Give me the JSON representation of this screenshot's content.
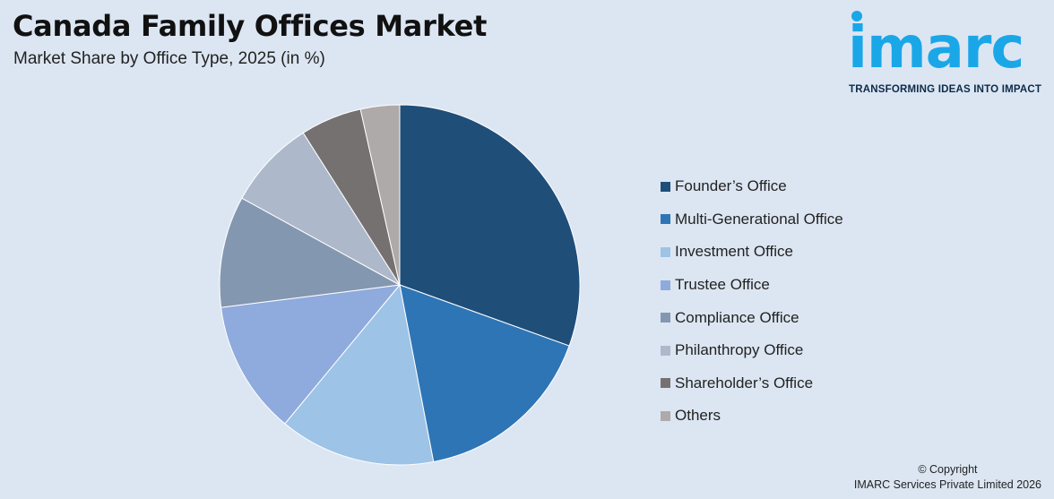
{
  "header": {
    "title": "Canada Family Offices Market",
    "subtitle": "Market Share by Office Type, 2025 (in %)"
  },
  "logo": {
    "word": "imarc",
    "tagline": "TRANSFORMING IDEAS INTO IMPACT",
    "color": "#1aa7e8"
  },
  "footer": {
    "copyright": "© Copyright",
    "company": "IMARC Services Private Limited 2026"
  },
  "chart_data": {
    "type": "pie",
    "legend_position": "right",
    "categories": [
      "Founder’s Office",
      "Multi-Generational Office",
      "Investment Office",
      "Trustee Office",
      "Compliance Office",
      "Philanthropy Office",
      "Shareholder’s Office",
      "Others"
    ],
    "values": [
      30.5,
      16.5,
      14,
      12,
      10,
      8,
      5.5,
      3.5
    ],
    "colors": [
      "#1f4e79",
      "#2e75b6",
      "#9dc3e6",
      "#8faadc",
      "#8497b0",
      "#adb9ca",
      "#767171",
      "#aeaaaa"
    ]
  }
}
